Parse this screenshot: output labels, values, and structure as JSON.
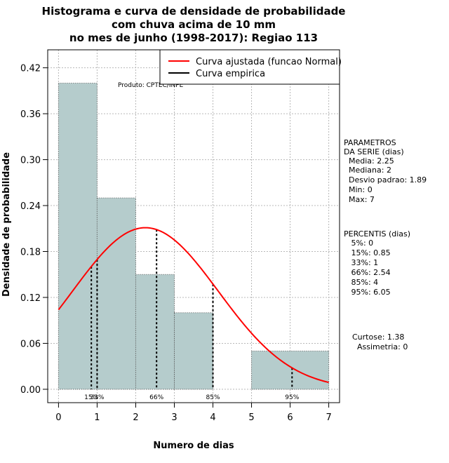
{
  "chart_data": {
    "type": "bar",
    "title_lines": [
      "Histograma e curva de densidade de probabilidade",
      "com chuva acima de 10 mm",
      "no mes de junho (1998-2017): Regiao 113"
    ],
    "xlabel": "Numero de dias",
    "ylabel": "Densidade de probabilidade",
    "xlim": [
      -0.28,
      7.28
    ],
    "ylim": [
      -0.0175,
      0.4435
    ],
    "xticks": [
      0,
      1,
      2,
      3,
      4,
      5,
      6,
      7
    ],
    "xtick_labels": [
      "0",
      "1",
      "2",
      "3",
      "4",
      "5",
      "6",
      "7"
    ],
    "yticks": [
      0.0,
      0.06,
      0.12,
      0.18,
      0.24,
      0.3,
      0.36,
      0.42
    ],
    "ytick_labels": [
      "0.00",
      "0.06",
      "0.12",
      "0.18",
      "0.24",
      "0.30",
      "0.36",
      "0.42"
    ],
    "grid": true,
    "histogram": {
      "bins": [
        [
          0,
          1
        ],
        [
          1,
          2
        ],
        [
          2,
          3
        ],
        [
          3,
          4
        ],
        [
          4,
          5
        ],
        [
          5,
          7
        ]
      ],
      "densities": [
        0.4,
        0.25,
        0.15,
        0.1,
        0.0,
        0.05
      ],
      "color": "#b5cccc"
    },
    "normal_curve": {
      "mean": 2.25,
      "sd": 1.89,
      "color": "#ff0000",
      "x_range": [
        0,
        7
      ]
    },
    "percentile_lines": [
      {
        "x": 0.85,
        "label": "15%"
      },
      {
        "x": 1.0,
        "label": "33%"
      },
      {
        "x": 2.54,
        "label": "66%"
      },
      {
        "x": 4.0,
        "label": "85%"
      },
      {
        "x": 6.05,
        "label": "95%"
      }
    ],
    "legend": {
      "position": "top-right",
      "entries": [
        {
          "label": "Curva ajustada (funcao Normal)",
          "color": "#ff0000"
        },
        {
          "label": "Curva empirica",
          "color": "#000000"
        }
      ]
    },
    "annotation": "Produto: CPTEC/INPE"
  },
  "side_panel": {
    "parametros": [
      "PARAMETROS",
      "DA SERIE (dias)",
      "  Media: 2.25",
      "  Mediana: 2",
      "  Desvio padrao: 1.89",
      "  Min: 0",
      "  Max: 7"
    ],
    "percentis": [
      "PERCENTIS (dias)",
      "   5%: 0",
      "   15%: 0.85",
      "   33%: 1",
      "   66%: 2.54",
      "   85%: 4",
      "   95%: 6.05"
    ],
    "stats": [
      "Curtose: 1.38",
      "  Assimetria: 0"
    ]
  }
}
